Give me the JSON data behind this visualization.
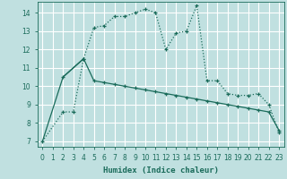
{
  "xlabel": "Humidex (Indice chaleur)",
  "bg_color": "#c0e0e0",
  "grid_color": "#ffffff",
  "line_color": "#1a6b5a",
  "xlim": [
    -0.5,
    23.5
  ],
  "ylim": [
    6.7,
    14.6
  ],
  "yticks": [
    7,
    8,
    9,
    10,
    11,
    12,
    13,
    14
  ],
  "xticks": [
    0,
    1,
    2,
    3,
    4,
    5,
    6,
    7,
    8,
    9,
    10,
    11,
    12,
    13,
    14,
    15,
    16,
    17,
    18,
    19,
    20,
    21,
    22,
    23
  ],
  "curve1_x": [
    0,
    2,
    3,
    4,
    5,
    6,
    7,
    8,
    9,
    10,
    11,
    12,
    13,
    14,
    15,
    16,
    17,
    18,
    19,
    20,
    21,
    22,
    23
  ],
  "curve1_y": [
    7.0,
    8.6,
    8.6,
    11.5,
    13.2,
    13.3,
    13.8,
    13.8,
    14.0,
    14.2,
    14.0,
    12.0,
    12.9,
    13.0,
    14.4,
    10.3,
    10.3,
    9.6,
    9.5,
    9.5,
    9.6,
    9.0,
    7.5
  ],
  "curve2_x": [
    2,
    4,
    5,
    6,
    7,
    8,
    9,
    10,
    11,
    12,
    13,
    14,
    15,
    16,
    17,
    18,
    19,
    20,
    21,
    22,
    23
  ],
  "curve2_y": [
    10.5,
    11.5,
    10.3,
    10.2,
    10.1,
    10.0,
    9.9,
    9.8,
    9.7,
    9.6,
    9.5,
    9.4,
    9.3,
    9.2,
    9.1,
    9.0,
    8.9,
    8.8,
    8.7,
    8.6,
    7.6
  ],
  "curve3_x": [
    0,
    2,
    4
  ],
  "curve3_y": [
    7.0,
    10.5,
    11.5
  ]
}
